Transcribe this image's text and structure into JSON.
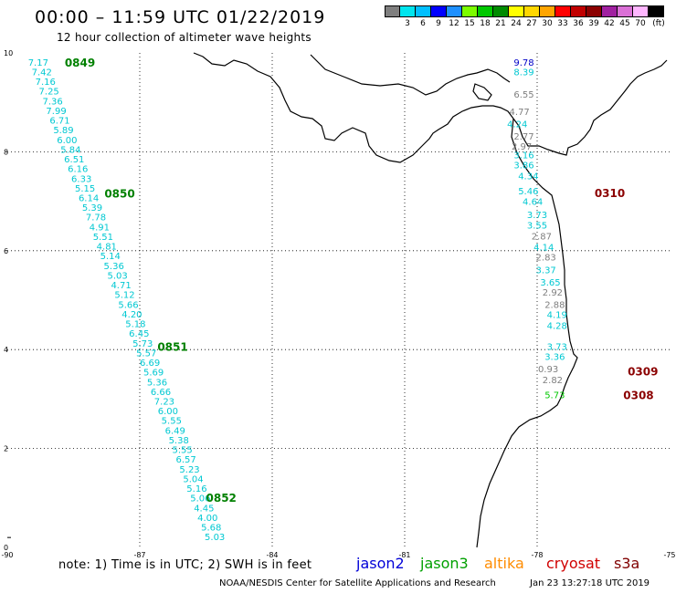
{
  "header": {
    "title": "00:00 – 11:59 UTC 01/22/2019",
    "subtitle": "12 hour collection of altimeter wave heights"
  },
  "color_scale": {
    "unit_label": "(ft)",
    "bins": [
      {
        "label": "",
        "color": "#7f7f7f"
      },
      {
        "label": "3",
        "color": "#00e5ee"
      },
      {
        "label": "6",
        "color": "#00bfff"
      },
      {
        "label": "9",
        "color": "#0000ff"
      },
      {
        "label": "12",
        "color": "#1e90ff"
      },
      {
        "label": "15",
        "color": "#7cfc00"
      },
      {
        "label": "18",
        "color": "#00c800"
      },
      {
        "label": "21",
        "color": "#008b00"
      },
      {
        "label": "24",
        "color": "#ffff00"
      },
      {
        "label": "27",
        "color": "#ffd700"
      },
      {
        "label": "30",
        "color": "#ffa500"
      },
      {
        "label": "33",
        "color": "#ff0000"
      },
      {
        "label": "36",
        "color": "#c00000"
      },
      {
        "label": "39",
        "color": "#8b0000"
      },
      {
        "label": "42",
        "color": "#a020a0"
      },
      {
        "label": "45",
        "color": "#da70d6"
      },
      {
        "label": "70",
        "color": "#ffb6ff"
      },
      {
        "label": "",
        "color": "#000000"
      }
    ]
  },
  "axes": {
    "x_ticks": [
      "-90",
      "-87",
      "-84",
      "-81",
      "-78",
      "-75"
    ],
    "y_ticks": [
      "0",
      "2",
      "4",
      "6",
      "8",
      "10"
    ],
    "x_range": [
      -90,
      -75
    ],
    "y_range": [
      0,
      10
    ]
  },
  "tracks": [
    {
      "satellite": "jason3",
      "color": "#00c8d2",
      "time_color": "#008000",
      "start": [
        -89.3,
        9.8
      ],
      "end": [
        -85.3,
        0.2
      ],
      "values": [
        "7.17",
        "7.42",
        "7.16",
        "7.25",
        "7.36",
        "7.99",
        "6.71",
        "5.89",
        "6.00",
        "5.84",
        "6.51",
        "6.16",
        "6.33",
        "5.15",
        "6.14",
        "5.39",
        "7.78",
        "4.91",
        "5.51",
        "4.81",
        "5.14",
        "5.36",
        "5.03",
        "4.71",
        "5.12",
        "5.66",
        "4.20",
        "5.18",
        "6.45",
        "5.73",
        "5.57",
        "6.69",
        "5.69",
        "5.36",
        "6.66",
        "7.23",
        "6.00",
        "5.55",
        "6.49",
        "5.38",
        "5.55",
        "6.57",
        "5.23",
        "5.04",
        "5.16",
        "5.06",
        "4.45",
        "4.00",
        "5.68",
        "5.03"
      ],
      "times": [
        {
          "label": "0849",
          "lon": -88.7,
          "lat": 9.8
        },
        {
          "label": "0850",
          "lon": -87.8,
          "lat": 7.15
        },
        {
          "label": "0851",
          "lon": -86.6,
          "lat": 4.05
        },
        {
          "label": "0852",
          "lon": -85.5,
          "lat": 1.0
        }
      ]
    }
  ],
  "coastal_values": [
    {
      "value": "9.78",
      "color": "#0000c8",
      "lon": -78.3,
      "lat": 9.8
    },
    {
      "value": "8.39",
      "color": "#00c8d2",
      "lon": -78.3,
      "lat": 9.6
    },
    {
      "value": "6.55",
      "color": "#7f7f7f",
      "lon": -78.3,
      "lat": 9.15
    },
    {
      "value": "4.77",
      "color": "#7f7f7f",
      "lon": -78.4,
      "lat": 8.8
    },
    {
      "value": "4.24",
      "color": "#00c8d2",
      "lon": -78.45,
      "lat": 8.55
    },
    {
      "value": "2.77",
      "color": "#7f7f7f",
      "lon": -78.3,
      "lat": 8.3
    },
    {
      "value": "2.97",
      "color": "#7f7f7f",
      "lon": -78.35,
      "lat": 8.1
    },
    {
      "value": "3.16",
      "color": "#00c8d2",
      "lon": -78.3,
      "lat": 7.92
    },
    {
      "value": "3.86",
      "color": "#00c8d2",
      "lon": -78.3,
      "lat": 7.72
    },
    {
      "value": "4.34",
      "color": "#00c8d2",
      "lon": -78.2,
      "lat": 7.5
    },
    {
      "value": "5.46",
      "color": "#00c8d2",
      "lon": -78.2,
      "lat": 7.2
    },
    {
      "value": "4.64",
      "color": "#00c8d2",
      "lon": -78.1,
      "lat": 6.98
    },
    {
      "value": "3.73",
      "color": "#00c8d2",
      "lon": -78.0,
      "lat": 6.72
    },
    {
      "value": "3.55",
      "color": "#00c8d2",
      "lon": -78.0,
      "lat": 6.5
    },
    {
      "value": "2.87",
      "color": "#7f7f7f",
      "lon": -77.9,
      "lat": 6.28
    },
    {
      "value": "4.14",
      "color": "#00c8d2",
      "lon": -77.85,
      "lat": 6.06
    },
    {
      "value": "2.83",
      "color": "#7f7f7f",
      "lon": -77.8,
      "lat": 5.86
    },
    {
      "value": "3.37",
      "color": "#00c8d2",
      "lon": -77.8,
      "lat": 5.6
    },
    {
      "value": "3.65",
      "color": "#00c8d2",
      "lon": -77.7,
      "lat": 5.35
    },
    {
      "value": "2.92",
      "color": "#7f7f7f",
      "lon": -77.65,
      "lat": 5.15
    },
    {
      "value": "2.88",
      "color": "#7f7f7f",
      "lon": -77.6,
      "lat": 4.9
    },
    {
      "value": "4.19",
      "color": "#00c8d2",
      "lon": -77.55,
      "lat": 4.7
    },
    {
      "value": "4.28",
      "color": "#00c8d2",
      "lon": -77.55,
      "lat": 4.47
    },
    {
      "value": "3.73",
      "color": "#00c8d2",
      "lon": -77.55,
      "lat": 4.05
    },
    {
      "value": "3.36",
      "color": "#00c8d2",
      "lon": -77.6,
      "lat": 3.85
    },
    {
      "value": "0.93",
      "color": "#7f7f7f",
      "lon": -77.75,
      "lat": 3.6
    },
    {
      "value": "2.82",
      "color": "#7f7f7f",
      "lon": -77.65,
      "lat": 3.38
    },
    {
      "value": "5.73",
      "color": "#00c800",
      "lon": -77.6,
      "lat": 3.07
    }
  ],
  "time_labels": [
    {
      "label": "0310",
      "color": "#8b0000",
      "lon": -76.7,
      "lat": 7.16
    },
    {
      "label": "0309",
      "color": "#8b0000",
      "lon": -75.95,
      "lat": 3.55
    },
    {
      "label": "0308",
      "color": "#8b0000",
      "lon": -76.05,
      "lat": 3.07
    }
  ],
  "footer": {
    "note": "note:  1) Time is in UTC;  2) SWH is in feet",
    "satellites": [
      {
        "name": "jason2",
        "color": "#0000d8"
      },
      {
        "name": "jason3",
        "color": "#00a000"
      },
      {
        "name": "altika",
        "color": "#ff8c00"
      },
      {
        "name": "cryosat",
        "color": "#d00000"
      },
      {
        "name": "s3a",
        "color": "#800000"
      }
    ],
    "credit": "NOAA/NESDIS Center for Satellite Applications and Research",
    "timestamp": "Jan 23 13:27:18 UTC 2019"
  }
}
